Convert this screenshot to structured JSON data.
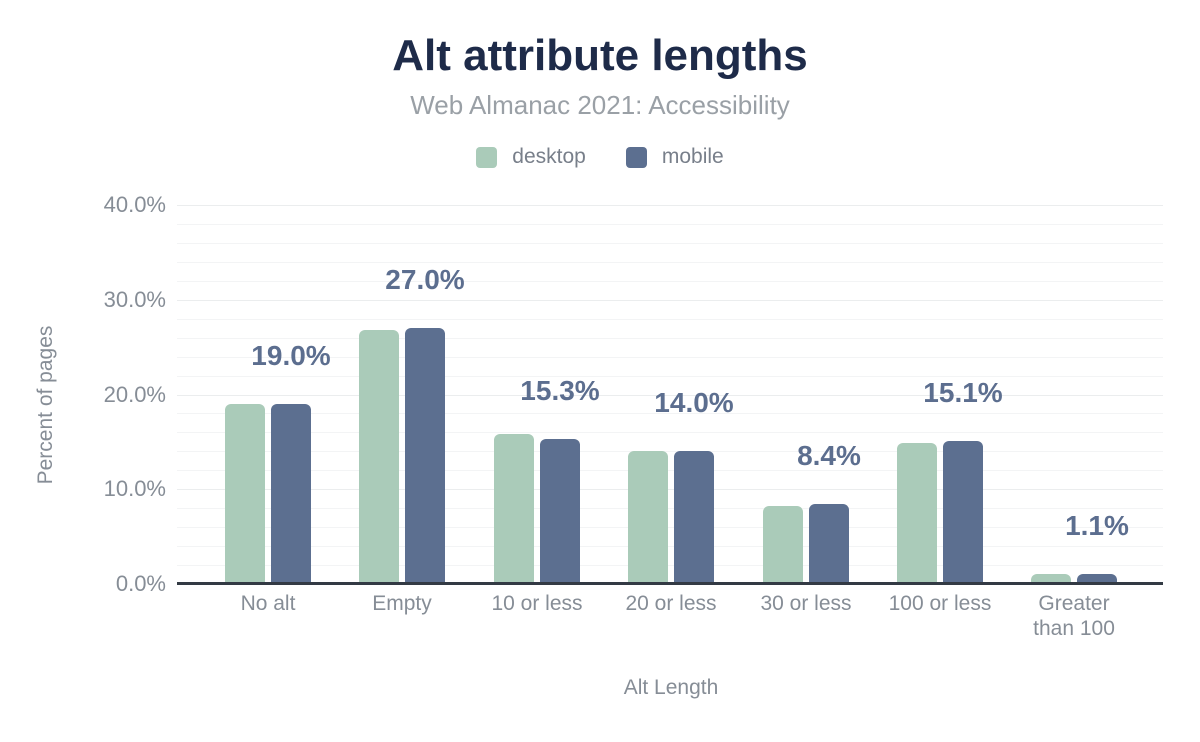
{
  "figure": {
    "title": "Alt attribute lengths",
    "subtitle": "Web Almanac 2021: Accessibility"
  },
  "chart_data": {
    "type": "bar",
    "title": "Alt attribute lengths",
    "subtitle": "Web Almanac 2021: Accessibility",
    "categories": [
      "No alt",
      "Empty",
      "10 or less",
      "20 or less",
      "30 or less",
      "100 or less",
      "Greater than 100"
    ],
    "series": [
      {
        "name": "desktop",
        "color": "#aacbb9",
        "values": [
          19.0,
          26.8,
          15.8,
          14.0,
          8.2,
          14.9,
          1.1
        ]
      },
      {
        "name": "mobile",
        "color": "#5c6f90",
        "values": [
          19.0,
          27.0,
          15.3,
          14.0,
          8.4,
          15.1,
          1.1
        ]
      }
    ],
    "value_labels": [
      "19.0%",
      "27.0%",
      "15.3%",
      "14.0%",
      "8.4%",
      "15.1%",
      "1.1%"
    ],
    "value_labels_refer_to": "mobile",
    "xlabel": "Alt Length",
    "ylabel": "Percent of pages",
    "y_ticks": [
      "0.0%",
      "10.0%",
      "20.0%",
      "30.0%",
      "40.0%"
    ],
    "ylim": [
      0,
      40
    ],
    "grid": "horizontal, minor lines every 2%",
    "legend_position": "top"
  },
  "colors": {
    "title_text": "#1e2b49",
    "subtitle_text": "#9aa0a6",
    "axis_text": "#868d96",
    "legend_text": "#787f8a",
    "value_label_text": "#5c6e8f",
    "gridline_minor": "#f3f4f5",
    "gridline_major": "#ebedee",
    "axis_line": "#333a44",
    "background": "#ffffff"
  }
}
